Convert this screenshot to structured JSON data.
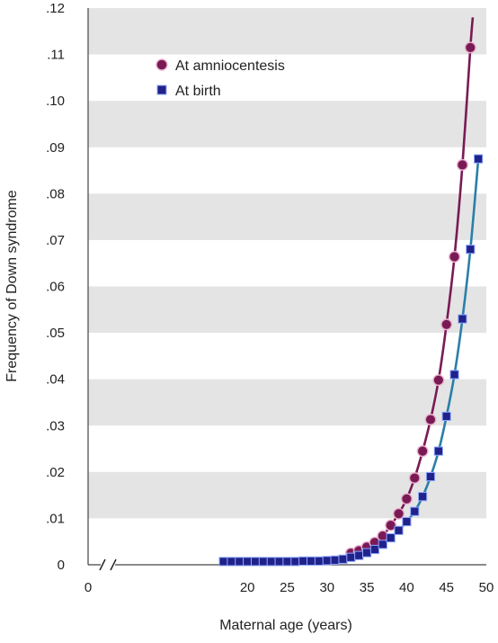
{
  "chart_data": {
    "type": "line",
    "xlabel": "Maternal age (years)",
    "ylabel": "Frequency of Down syndrome",
    "xlim": [
      0,
      50
    ],
    "ylim": [
      0,
      0.12
    ],
    "x_ticks": [
      {
        "value": 0,
        "label": "0"
      },
      {
        "value": 20,
        "label": "20"
      },
      {
        "value": 25,
        "label": "25"
      },
      {
        "value": 30,
        "label": "30"
      },
      {
        "value": 35,
        "label": "35"
      },
      {
        "value": 40,
        "label": "40"
      },
      {
        "value": 45,
        "label": "45"
      },
      {
        "value": 50,
        "label": "50"
      }
    ],
    "y_ticks": [
      {
        "value": 0,
        "label": "0"
      },
      {
        "value": 0.01,
        "label": ".01"
      },
      {
        "value": 0.02,
        "label": ".02"
      },
      {
        "value": 0.03,
        "label": ".03"
      },
      {
        "value": 0.04,
        "label": ".04"
      },
      {
        "value": 0.05,
        "label": ".05"
      },
      {
        "value": 0.06,
        "label": ".06"
      },
      {
        "value": 0.07,
        "label": ".07"
      },
      {
        "value": 0.08,
        "label": ".08"
      },
      {
        "value": 0.09,
        "label": ".09"
      },
      {
        "value": 0.1,
        "label": ".10"
      },
      {
        "value": 0.11,
        "label": ".11"
      },
      {
        "value": 0.12,
        "label": ".12"
      }
    ],
    "axis_break": true,
    "grid": "alternating horizontal bands",
    "legend_position": "top-left",
    "series": [
      {
        "name": "At amniocentesis",
        "marker": "circle",
        "color": "#7a1a55",
        "marker_fill": "#7a1a55",
        "x": [
          33,
          34,
          35,
          36,
          37,
          38,
          39,
          40,
          41,
          42,
          43,
          44,
          45,
          46,
          47,
          48
        ],
        "y": [
          0.0025,
          0.003,
          0.0038,
          0.0048,
          0.0062,
          0.0085,
          0.011,
          0.0142,
          0.0187,
          0.0245,
          0.0313,
          0.0398,
          0.0518,
          0.0664,
          0.0862,
          0.1115
        ],
        "curve_end": [
          48.3,
          0.118
        ]
      },
      {
        "name": "At birth",
        "marker": "square",
        "color": "#2a7fa8",
        "marker_fill": "#20228a",
        "x": [
          17,
          18,
          19,
          20,
          21,
          22,
          23,
          24,
          25,
          26,
          27,
          28,
          29,
          30,
          31,
          32,
          33,
          34,
          35,
          36,
          37,
          38,
          39,
          40,
          41,
          42,
          43,
          44,
          45,
          46,
          47,
          48,
          49
        ],
        "y": [
          0.0007,
          0.0007,
          0.0007,
          0.0007,
          0.0007,
          0.0007,
          0.0007,
          0.0007,
          0.0007,
          0.0007,
          0.0008,
          0.0008,
          0.0008,
          0.0009,
          0.001,
          0.0012,
          0.0016,
          0.002,
          0.0026,
          0.0033,
          0.0044,
          0.0058,
          0.0074,
          0.0093,
          0.0115,
          0.0147,
          0.019,
          0.0245,
          0.032,
          0.041,
          0.053,
          0.068,
          0.0875
        ]
      }
    ]
  }
}
